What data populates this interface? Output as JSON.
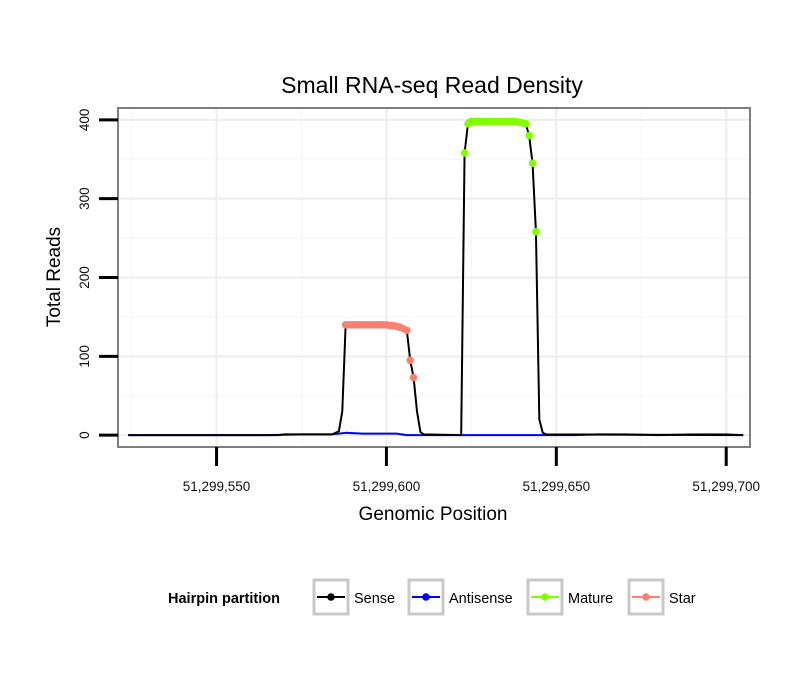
{
  "chart_data": {
    "type": "line",
    "title": "Small RNA-seq Read Density",
    "xlabel": "Genomic Position",
    "ylabel": "Total Reads",
    "xlim": [
      51299521,
      51299707
    ],
    "ylim": [
      -15,
      415
    ],
    "x_ticks": [
      {
        "value": 51299550,
        "label": "51,299,550"
      },
      {
        "value": 51299600,
        "label": "51,299,600"
      },
      {
        "value": 51299650,
        "label": "51,299,650"
      },
      {
        "value": 51299700,
        "label": "51,299,700"
      }
    ],
    "y_ticks": [
      {
        "value": 0,
        "label": "0"
      },
      {
        "value": 100,
        "label": "100"
      },
      {
        "value": 200,
        "label": "200"
      },
      {
        "value": 300,
        "label": "300"
      },
      {
        "value": 400,
        "label": "400"
      }
    ],
    "grid": true,
    "legend": {
      "title": "Hairpin partition",
      "position": "bottom",
      "entries": [
        {
          "name": "Sense",
          "color": "#000000"
        },
        {
          "name": "Antisense",
          "color": "#0000ff"
        },
        {
          "name": "Mature",
          "color": "#7fff00"
        },
        {
          "name": "Star",
          "color": "#fa8072"
        }
      ]
    },
    "series": [
      {
        "name": "Sense",
        "color": "#000000",
        "points": [
          [
            51299524,
            0
          ],
          [
            51299568,
            0
          ],
          [
            51299570,
            1
          ],
          [
            51299584,
            1
          ],
          [
            51299586,
            5
          ],
          [
            51299587,
            30
          ],
          [
            51299588,
            140
          ],
          [
            51299604,
            137
          ],
          [
            51299606,
            133
          ],
          [
            51299607,
            95
          ],
          [
            51299608,
            73
          ],
          [
            51299609,
            30
          ],
          [
            51299610,
            4
          ],
          [
            51299611,
            1
          ],
          [
            51299622,
            0
          ],
          [
            51299623,
            358
          ],
          [
            51299624,
            395
          ],
          [
            51299625,
            398
          ],
          [
            51299639,
            398
          ],
          [
            51299641,
            395
          ],
          [
            51299642,
            380
          ],
          [
            51299643,
            345
          ],
          [
            51299644,
            258
          ],
          [
            51299645,
            20
          ],
          [
            51299646,
            3
          ],
          [
            51299647,
            1
          ],
          [
            51299705,
            0
          ]
        ]
      },
      {
        "name": "Antisense",
        "color": "#0000ff",
        "points": [
          [
            51299524,
            0
          ],
          [
            51299565,
            0
          ],
          [
            51299575,
            1
          ],
          [
            51299584,
            1
          ],
          [
            51299588,
            3
          ],
          [
            51299593,
            2
          ],
          [
            51299603,
            2
          ],
          [
            51299606,
            0
          ],
          [
            51299655,
            0
          ],
          [
            51299662,
            1
          ],
          [
            51299670,
            1
          ],
          [
            51299680,
            0
          ],
          [
            51299690,
            1
          ],
          [
            51299700,
            1
          ],
          [
            51299705,
            0
          ]
        ]
      },
      {
        "name": "Mature",
        "color": "#7fff00",
        "points": [
          [
            51299623,
            358
          ],
          [
            51299624,
            395
          ],
          [
            51299624.5,
            397
          ],
          [
            51299625,
            398
          ],
          [
            51299626,
            398
          ],
          [
            51299627,
            398
          ],
          [
            51299628,
            398
          ],
          [
            51299629,
            398
          ],
          [
            51299630,
            398
          ],
          [
            51299631,
            398
          ],
          [
            51299632,
            398
          ],
          [
            51299633,
            398
          ],
          [
            51299634,
            398
          ],
          [
            51299635,
            398
          ],
          [
            51299636,
            398
          ],
          [
            51299637,
            398
          ],
          [
            51299638,
            398
          ],
          [
            51299639,
            397
          ],
          [
            51299640,
            396
          ],
          [
            51299641,
            395
          ],
          [
            51299642,
            380
          ],
          [
            51299643,
            345
          ],
          [
            51299644,
            258
          ]
        ]
      },
      {
        "name": "Star",
        "color": "#fa8072",
        "points": [
          [
            51299588,
            140
          ],
          [
            51299589,
            140
          ],
          [
            51299590,
            140
          ],
          [
            51299591,
            140
          ],
          [
            51299592,
            140
          ],
          [
            51299593,
            140
          ],
          [
            51299594,
            140
          ],
          [
            51299595,
            140
          ],
          [
            51299596,
            140
          ],
          [
            51299597,
            140
          ],
          [
            51299598,
            140
          ],
          [
            51299599,
            140
          ],
          [
            51299600,
            140
          ],
          [
            51299601,
            139
          ],
          [
            51299602,
            139
          ],
          [
            51299603,
            138
          ],
          [
            51299604,
            137
          ],
          [
            51299605,
            135
          ],
          [
            51299606,
            133
          ],
          [
            51299607,
            95
          ],
          [
            51299608,
            73
          ]
        ]
      }
    ]
  }
}
